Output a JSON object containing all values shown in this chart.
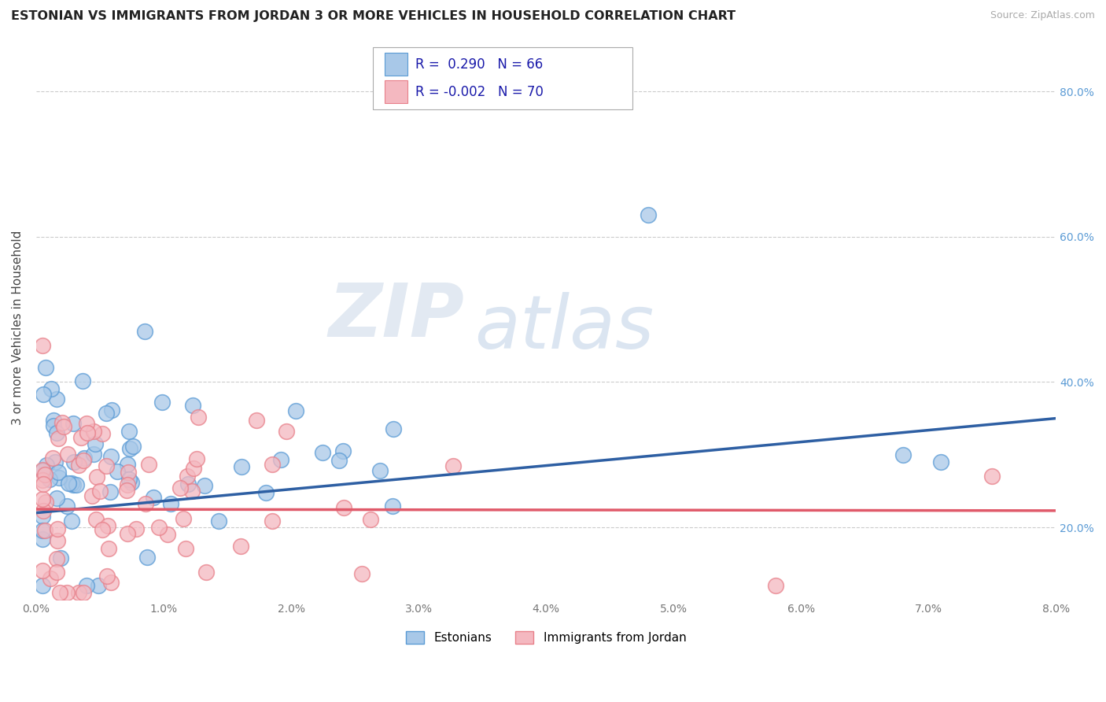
{
  "title": "ESTONIAN VS IMMIGRANTS FROM JORDAN 3 OR MORE VEHICLES IN HOUSEHOLD CORRELATION CHART",
  "source": "Source: ZipAtlas.com",
  "ylabel": "3 or more Vehicles in Household",
  "xlim": [
    0.0,
    8.0
  ],
  "ylim": [
    10.0,
    85.0
  ],
  "yticks": [
    20.0,
    40.0,
    60.0,
    80.0
  ],
  "xticks": [
    0,
    1,
    2,
    3,
    4,
    5,
    6,
    7,
    8
  ],
  "R_estonian": 0.29,
  "N_estonian": 66,
  "R_jordan": -0.002,
  "N_jordan": 70,
  "estonian_color": "#a8c8e8",
  "estonian_edge": "#5b9bd5",
  "jordan_color": "#f4b8c0",
  "jordan_edge": "#e8808a",
  "estonian_line_color": "#2e5fa3",
  "jordan_line_color": "#e05a6a",
  "legend_estonian": "Estonians",
  "legend_jordan": "Immigrants from Jordan",
  "watermark_zip": "ZIP",
  "watermark_atlas": "atlas",
  "background_color": "#ffffff",
  "grid_color": "#cccccc",
  "est_line_y0": 22.0,
  "est_line_y1": 35.0,
  "jor_line_y0": 22.5,
  "jor_line_y1": 22.3
}
